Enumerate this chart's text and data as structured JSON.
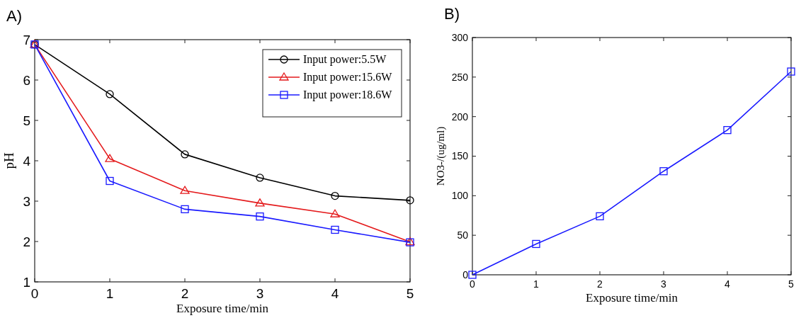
{
  "chart_data": [
    {
      "type": "line",
      "title": "A)",
      "xlabel": "Exposure time/min",
      "ylabel": "pH",
      "x": [
        0,
        1,
        2,
        3,
        4,
        5
      ],
      "xlim": [
        0,
        5
      ],
      "xticks": [
        0,
        1,
        2,
        3,
        4,
        5
      ],
      "ylim": [
        1,
        7
      ],
      "yticks": [
        1,
        2,
        3,
        4,
        5,
        6,
        7
      ],
      "legend": "top right",
      "grid": false,
      "series": [
        {
          "name": "Input power:5.5W",
          "color": "#000000",
          "marker": "circle",
          "values": [
            6.88,
            5.65,
            4.16,
            3.58,
            3.13,
            3.02
          ]
        },
        {
          "name": "Input power:15.6W",
          "color": "#e41a1c",
          "marker": "triangle",
          "values": [
            6.88,
            4.05,
            3.26,
            2.95,
            2.68,
            1.99
          ]
        },
        {
          "name": "Input power:18.6W",
          "color": "#1a1aff",
          "marker": "square",
          "values": [
            6.88,
            3.5,
            2.8,
            2.62,
            2.29,
            1.98
          ]
        }
      ]
    },
    {
      "type": "line",
      "title": "B)",
      "xlabel": "Exposure time/min",
      "ylabel": "NO3-/(ug/ml)",
      "x": [
        0,
        1,
        2,
        3,
        4,
        5
      ],
      "xlim": [
        0,
        5
      ],
      "xticks": [
        0,
        1,
        2,
        3,
        4,
        5
      ],
      "ylim": [
        0,
        300
      ],
      "yticks": [
        0,
        50,
        100,
        150,
        200,
        250,
        300
      ],
      "grid": false,
      "legend": false,
      "marker": "square",
      "series": [
        {
          "color": "#1a1aff",
          "values": [
            0,
            39,
            74,
            131,
            183,
            257
          ]
        }
      ]
    }
  ]
}
